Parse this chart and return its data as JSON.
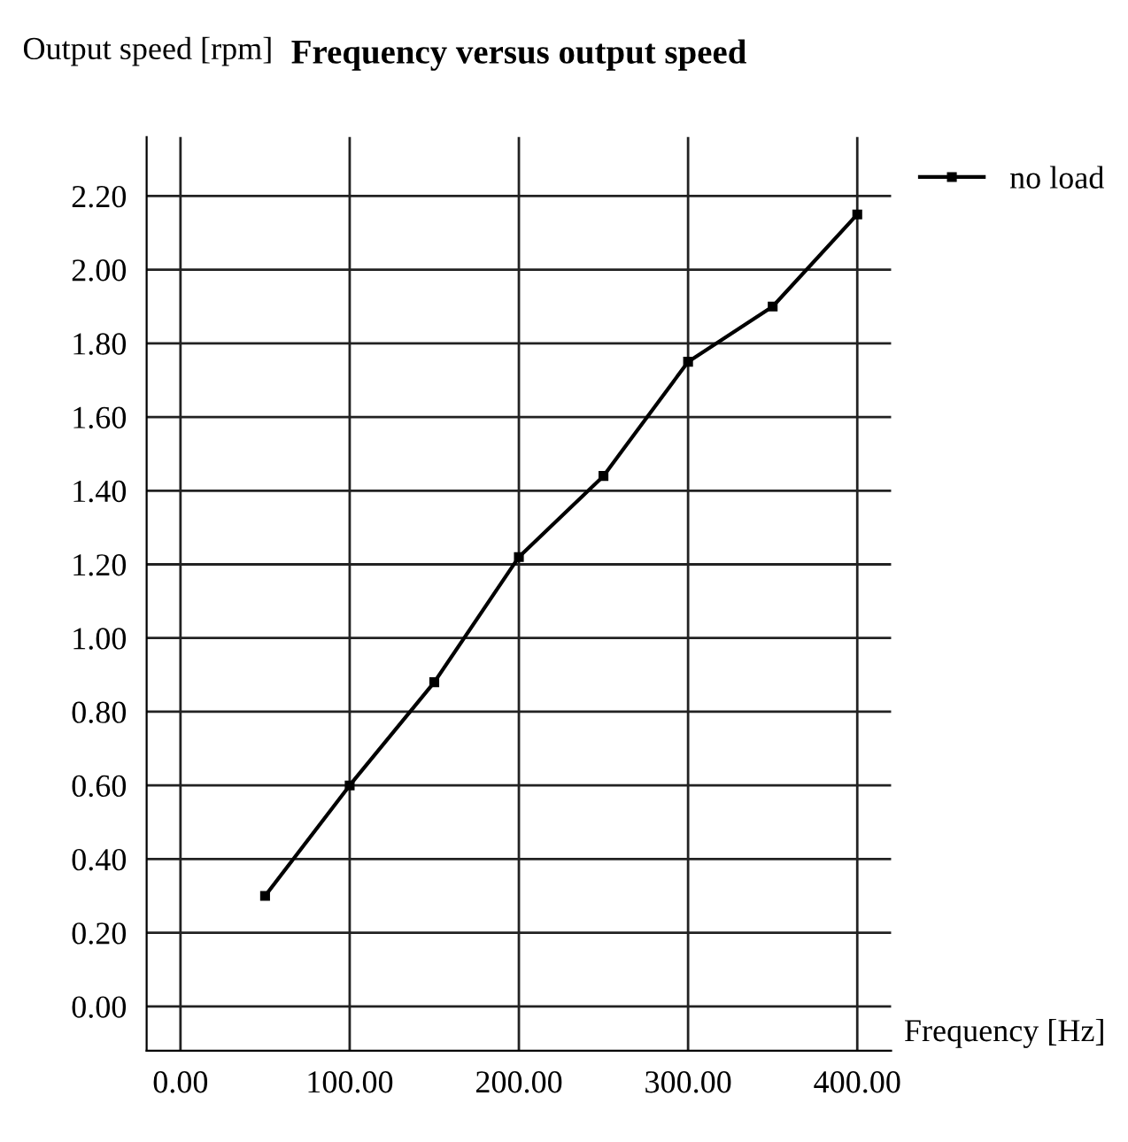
{
  "chart_data": {
    "type": "line",
    "title": "Frequency versus output speed",
    "xlabel": "Frequency [Hz]",
    "ylabel": "Output speed [rpm]",
    "x": [
      50,
      100,
      150,
      200,
      250,
      300,
      350,
      400
    ],
    "series": [
      {
        "name": "no load",
        "color": "#000000",
        "values": [
          0.3,
          0.6,
          0.88,
          1.22,
          1.44,
          1.75,
          1.9,
          2.15
        ]
      }
    ],
    "xlim": [
      -20,
      420
    ],
    "ylim": [
      -0.12,
      2.36
    ],
    "xticks": [
      {
        "value": 0,
        "label": "0.00"
      },
      {
        "value": 100,
        "label": "100.00"
      },
      {
        "value": 200,
        "label": "200.00"
      },
      {
        "value": 300,
        "label": "300.00"
      },
      {
        "value": 400,
        "label": "400.00"
      }
    ],
    "yticks": [
      {
        "value": 0,
        "label": "0.00"
      },
      {
        "value": 0.2,
        "label": "0.20"
      },
      {
        "value": 0.4,
        "label": "0.40"
      },
      {
        "value": 0.6,
        "label": "0.60"
      },
      {
        "value": 0.8,
        "label": "0.80"
      },
      {
        "value": 1.0,
        "label": "1.00"
      },
      {
        "value": 1.2,
        "label": "1.20"
      },
      {
        "value": 1.4,
        "label": "1.40"
      },
      {
        "value": 1.6,
        "label": "1.60"
      },
      {
        "value": 1.8,
        "label": "1.80"
      },
      {
        "value": 2.0,
        "label": "2.00"
      },
      {
        "value": 2.2,
        "label": "2.20"
      }
    ],
    "grid": true,
    "legend": "top right",
    "marker": "square",
    "line_style": "solid"
  }
}
